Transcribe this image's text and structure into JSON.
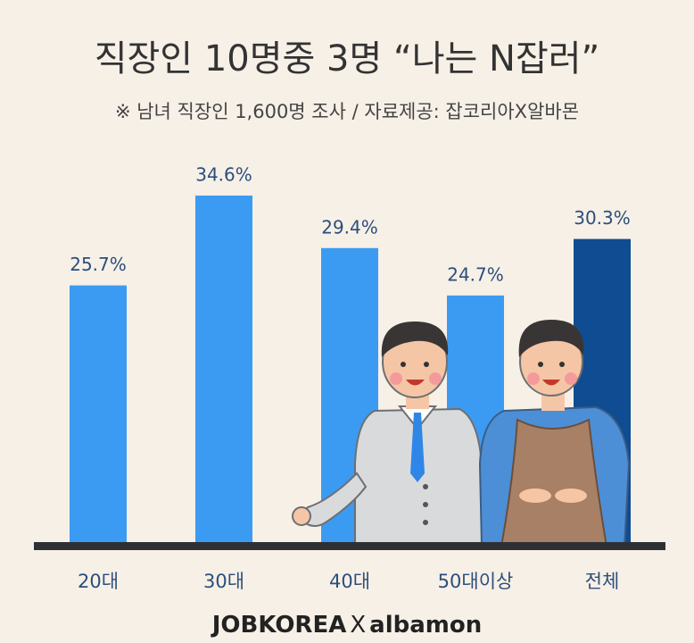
{
  "chart_data": {
    "type": "bar",
    "title": "직장인 10명중 3명 “나는 N잡러”",
    "subtitle": "※ 남녀 직장인 1,600명 조사 / 자료제공: 잡코리아X알바몬",
    "categories": [
      "20대",
      "30대",
      "40대",
      "50대이상",
      "전체"
    ],
    "values": [
      25.7,
      34.6,
      29.4,
      24.7,
      30.3
    ],
    "value_labels": [
      "25.7%",
      "34.6%",
      "29.4%",
      "24.7%",
      "30.3%"
    ],
    "colors": [
      "#3b9bf2",
      "#3b9bf2",
      "#3b9bf2",
      "#3b9bf2",
      "#0f4c92"
    ],
    "logo": {
      "left": "JOBKOREA",
      "mid": "X",
      "right": "albamon"
    }
  }
}
